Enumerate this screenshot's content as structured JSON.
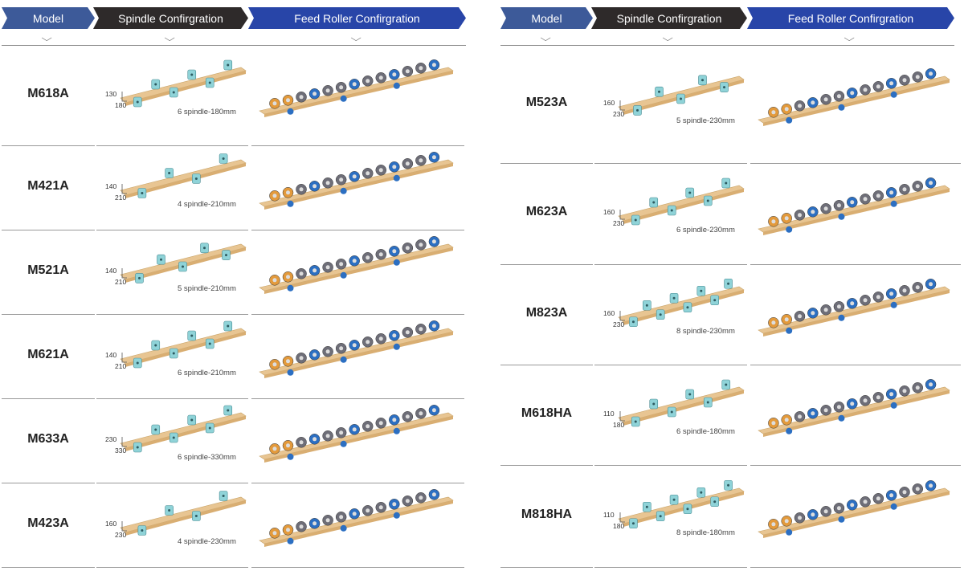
{
  "headers": {
    "model": "Model",
    "spindle": "Spindle Confirgration",
    "feed": "Feed Roller Confirgration"
  },
  "colors": {
    "model_header": "#3d5a99",
    "spindle_header": "#2e2a2a",
    "feed_header": "#2845a8",
    "wood": "#e8c592",
    "spindle": "#8fd3d8",
    "roller_grey": "#6e6e78",
    "roller_orange": "#e39a3c",
    "roller_blue": "#2c6fc2"
  },
  "left": {
    "rows": [
      {
        "model": "M618A",
        "spec": "6 spindle-180mm",
        "dim_top": "130",
        "dim_bottom": "180"
      },
      {
        "model": "M421A",
        "spec": "4 spindle-210mm",
        "dim_top": "140",
        "dim_bottom": "210"
      },
      {
        "model": "M521A",
        "spec": "5 spindle-210mm",
        "dim_top": "140",
        "dim_bottom": "210"
      },
      {
        "model": "M621A",
        "spec": "6 spindle-210mm",
        "dim_top": "140",
        "dim_bottom": "210"
      },
      {
        "model": "M633A",
        "spec": "6 spindle-330mm",
        "dim_top": "230",
        "dim_bottom": "330"
      },
      {
        "model": "M423A",
        "spec": "4 spindle-230mm",
        "dim_top": "160",
        "dim_bottom": "230"
      }
    ]
  },
  "right": {
    "rows": [
      {
        "model": "M523A",
        "spec": "5 spindle-230mm",
        "dim_top": "160",
        "dim_bottom": "230"
      },
      {
        "model": "M623A",
        "spec": "6 spindle-230mm",
        "dim_top": "160",
        "dim_bottom": "230"
      },
      {
        "model": "M823A",
        "spec": "8 spindle-230mm",
        "dim_top": "160",
        "dim_bottom": "230"
      },
      {
        "model": "M618HA",
        "spec": "6 spindle-180mm",
        "dim_top": "110",
        "dim_bottom": "180"
      },
      {
        "model": "M818HA",
        "spec": "8 spindle-180mm",
        "dim_top": "110",
        "dim_bottom": "180"
      }
    ]
  }
}
